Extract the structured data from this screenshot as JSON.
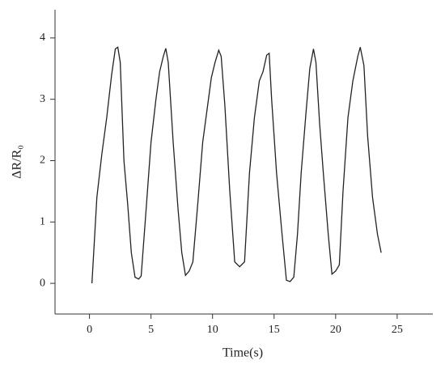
{
  "chart_data": {
    "type": "line",
    "x_label": "Time(s)",
    "y_label": "ΔR/R₀",
    "xlim": [
      -2.8,
      27.9
    ],
    "xticks": [
      0,
      5,
      10,
      15,
      20,
      25
    ],
    "ylim": [
      -0.5,
      4.46
    ],
    "yticks": [
      0,
      1,
      2,
      3,
      4
    ],
    "grid": false,
    "series": [
      {
        "color": "#222222",
        "x": [
          0.2,
          0.6,
          1.0,
          1.4,
          1.8,
          2.1,
          2.3,
          2.5,
          2.8,
          3.1,
          3.4,
          3.7,
          4.0,
          4.2,
          4.6,
          5.0,
          5.4,
          5.7,
          6.0,
          6.2,
          6.4,
          6.8,
          7.2,
          7.5,
          7.8,
          8.1,
          8.4,
          8.8,
          9.2,
          9.6,
          9.9,
          10.2,
          10.5,
          10.7,
          11.0,
          11.4,
          11.8,
          12.2,
          12.6,
          13.0,
          13.4,
          13.8,
          14.1,
          14.4,
          14.6,
          14.8,
          15.2,
          15.6,
          16.0,
          16.3,
          16.6,
          16.9,
          17.2,
          17.6,
          17.9,
          18.2,
          18.4,
          18.7,
          19.0,
          19.4,
          19.7,
          20.0,
          20.3,
          20.6,
          21.0,
          21.4,
          21.8,
          22.0,
          22.3,
          22.6,
          23.0,
          23.4,
          23.7
        ],
        "values": [
          0,
          1.4,
          2.1,
          2.7,
          3.4,
          3.82,
          3.85,
          3.6,
          2.0,
          1.3,
          0.5,
          0.1,
          0.07,
          0.12,
          1.2,
          2.3,
          3.0,
          3.45,
          3.7,
          3.83,
          3.6,
          2.3,
          1.2,
          0.5,
          0.13,
          0.2,
          0.35,
          1.3,
          2.3,
          2.9,
          3.35,
          3.6,
          3.8,
          3.7,
          2.9,
          1.5,
          0.35,
          0.27,
          0.35,
          1.8,
          2.7,
          3.3,
          3.45,
          3.72,
          3.75,
          3.0,
          1.8,
          0.9,
          0.05,
          0.03,
          0.1,
          0.8,
          1.8,
          2.8,
          3.5,
          3.82,
          3.6,
          2.6,
          1.8,
          0.8,
          0.15,
          0.2,
          0.3,
          1.5,
          2.7,
          3.3,
          3.7,
          3.85,
          3.55,
          2.4,
          1.4,
          0.8,
          0.5
        ]
      }
    ]
  }
}
